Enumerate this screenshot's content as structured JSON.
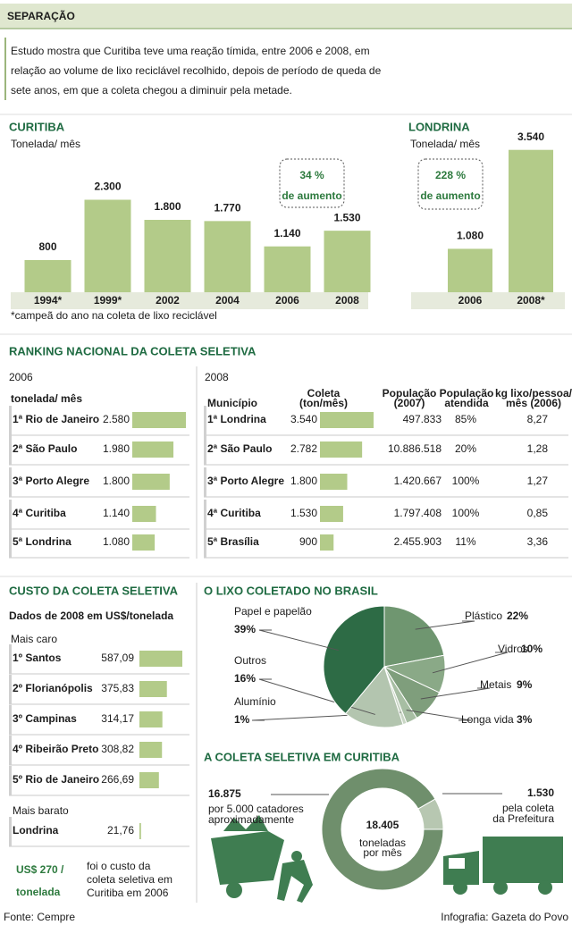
{
  "header": {
    "title": "SEPARAÇÃO",
    "intro": [
      "Estudo mostra que Curitiba teve uma reação tímida, entre 2006 e 2008, em",
      "relação ao  volume de lixo reciclável recolhido, depois de período de queda de",
      "sete anos, em que a coleta chegou a diminuir pela metade."
    ]
  },
  "ranking_title": "RANKING NACIONAL DA COLETA SELETIVA",
  "chart_data": [
    {
      "type": "bar",
      "title": "CURITIBA",
      "subtitle": "Tonelada/ mês",
      "categories": [
        "1994*",
        "1999*",
        "2002",
        "2004",
        "2006",
        "2008"
      ],
      "values": [
        800,
        2300,
        1800,
        1770,
        1140,
        1530
      ],
      "value_labels": [
        "800",
        "2.300",
        "1.800",
        "1.770",
        "1.140",
        "1.530"
      ],
      "color": "#b3cb89",
      "annotation": [
        "34 %",
        "de aumento"
      ],
      "note": "*campeã do ano na coleta de lixo reciclável"
    },
    {
      "type": "bar",
      "title": "LONDRINA",
      "subtitle": "Tonelada/ mês",
      "categories": [
        "2006",
        "2008*"
      ],
      "values": [
        1080,
        3540
      ],
      "value_labels": [
        "1.080",
        "3.540"
      ],
      "color": "#b3cb89",
      "annotation": [
        "228 %",
        "de aumento"
      ]
    },
    {
      "type": "hbar",
      "title": "2006",
      "subtitle": "tonelada/ mês",
      "categories": [
        "1ª Rio de Janeiro",
        "2ª São Paulo",
        "3ª Porto Alegre",
        "4ª Curitiba",
        "5ª Londrina"
      ],
      "values": [
        2580,
        1980,
        1800,
        1140,
        1080
      ],
      "value_labels": [
        "2.580",
        "1.980",
        "1.800",
        "1.140",
        "1.080"
      ],
      "color": "#b3cb89"
    },
    {
      "type": "hbar",
      "title": "2008",
      "columns": [
        [
          "Município"
        ],
        [
          "Coleta",
          "(ton/mês)"
        ],
        [
          "População",
          "(2007)"
        ],
        [
          "População",
          "atendida"
        ],
        [
          "kg lixo/pessoa/",
          "mês (2006)"
        ]
      ],
      "categories": [
        "1ª Londrina",
        "2ª São Paulo",
        "3ª Porto Alegre",
        "4ª Curitiba",
        "5ª Brasília"
      ],
      "values": [
        3540,
        2782,
        1800,
        1530,
        900
      ],
      "value_labels": [
        "3.540",
        "2.782",
        "1.800",
        "1.530",
        "900"
      ],
      "table": [
        [
          "497.833",
          "85%",
          "8,27"
        ],
        [
          "10.886.518",
          "20%",
          "1,28"
        ],
        [
          "1.420.667",
          "100%",
          "1,27"
        ],
        [
          "1.797.408",
          "100%",
          "0,85"
        ],
        [
          "2.455.903",
          "11%",
          "3,36"
        ]
      ],
      "color": "#b3cb89"
    },
    {
      "type": "hbar",
      "title": "CUSTO DA COLETA SELETIVA",
      "subtitle": "Dados de 2008 em US$/tonelada",
      "groups": [
        "Mais caro",
        "Mais barato"
      ],
      "categories": [
        "1º Santos",
        "2º Florianópolis",
        "3º Campinas",
        "4º Ribeirão Preto",
        "5º Rio de Janeiro",
        "Londrina"
      ],
      "values": [
        587.09,
        375.83,
        314.17,
        308.82,
        266.69,
        21.76
      ],
      "value_labels": [
        "587,09",
        "375,83",
        "314,17",
        "308,82",
        "266,69",
        "21,76"
      ],
      "color": "#b3cb89",
      "callout": {
        "value": [
          "US$ 270 /",
          "tonelada"
        ],
        "text": [
          "foi o custo da",
          "coleta seletiva em",
          "Curitiba em 2006"
        ]
      }
    },
    {
      "type": "pie",
      "title": "O LIXO COLETADO NO BRASIL",
      "categories": [
        "Plástico",
        "Vidros",
        "Metais",
        "Longa vida",
        "Alumínio",
        "Outros",
        "Papel e papelão"
      ],
      "values": [
        22,
        10,
        9,
        3,
        1,
        16,
        39
      ],
      "value_labels": [
        "22%",
        "10%",
        "9%",
        "3%",
        "1%",
        "16%",
        "39%"
      ],
      "colors": [
        "#6f9670",
        "#8aa987",
        "#7f9e7c",
        "#a7bea3",
        "#c9d6c5",
        "#b3c5af",
        "#2d6b45"
      ]
    },
    {
      "type": "donut",
      "title": "A COLETA SELETIVA EM CURITIBA",
      "values": [
        16875,
        1530
      ],
      "value_labels": [
        "16.875",
        "1.530"
      ],
      "descriptions": [
        [
          "por 5.000 catadores",
          "aproximadamente"
        ],
        [
          "pela coleta",
          "da Prefeitura"
        ]
      ],
      "colors": [
        "#6f8f6c",
        "#b7c7b1"
      ],
      "center_label": "18.405",
      "center_text": [
        "toneladas",
        "por mês"
      ]
    }
  ],
  "footer": {
    "source": "Fonte: Cempre",
    "credit": "Infografia: Gazeta do Povo"
  }
}
